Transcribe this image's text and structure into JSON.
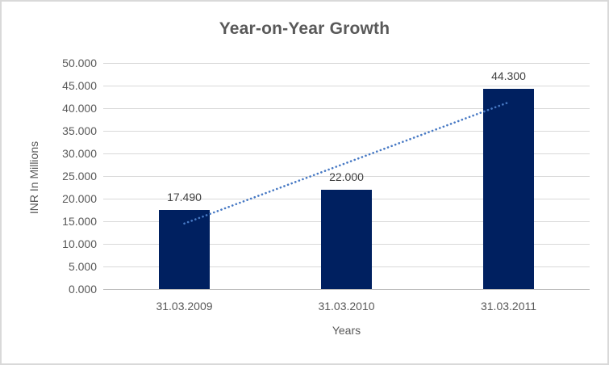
{
  "chart_data": {
    "type": "bar",
    "title": "Year-on-Year Growth",
    "xlabel": "Years",
    "ylabel": "INR In Millions",
    "categories": [
      "31.03.2009",
      "31.03.2010",
      "31.03.2011"
    ],
    "values": [
      17.49,
      22.0,
      44.3
    ],
    "value_labels": [
      "17.490",
      "22.000",
      "44.300"
    ],
    "ylim": [
      0,
      50
    ],
    "ytick_step": 5,
    "yticks": [
      {
        "value": 0,
        "label": "0.000"
      },
      {
        "value": 5,
        "label": "5.000"
      },
      {
        "value": 10,
        "label": "10.000"
      },
      {
        "value": 15,
        "label": "15.000"
      },
      {
        "value": 20,
        "label": "20.000"
      },
      {
        "value": 25,
        "label": "25.000"
      },
      {
        "value": 30,
        "label": "30.000"
      },
      {
        "value": 35,
        "label": "35.000"
      },
      {
        "value": 40,
        "label": "40.000"
      },
      {
        "value": 45,
        "label": "45.000"
      },
      {
        "value": 50,
        "label": "50.000"
      }
    ],
    "grid": true,
    "legend": "none",
    "trendline": {
      "type": "linear",
      "style": "dotted",
      "y_start": 14.5,
      "y_end": 41.3
    },
    "colors": {
      "bar": "#002060",
      "trendline": "#4779C4",
      "gridline": "#D9D9D9",
      "axis_line": "#BFBFBF",
      "tick_text": "#595959",
      "title_text": "#595959",
      "value_label_text": "#404040",
      "border": "#D9D9D9",
      "background": "#FFFFFF"
    }
  }
}
